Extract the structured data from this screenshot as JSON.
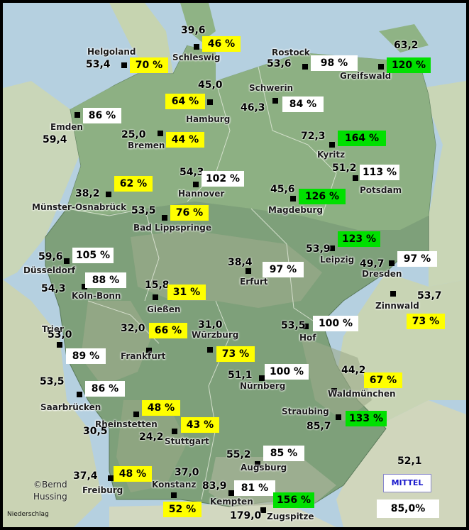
{
  "caption": "Niederschlag",
  "copyright": [
    "©Bernd",
    "Hussing"
  ],
  "average": {
    "legend": "MITTEL",
    "value": "52,1",
    "percent": "85,0%"
  },
  "colors": {
    "below": "#ffff00",
    "normal": "#ffffff",
    "above": "#00e000"
  },
  "stations": [
    {
      "id": "helgoland",
      "name": "Helgoland",
      "value": "53,4",
      "percent": "70 %",
      "level": "y"
    },
    {
      "id": "schleswig",
      "name": "Schleswig",
      "value": "39,6",
      "percent": "46 %",
      "level": "y"
    },
    {
      "id": "rostock",
      "name": "Rostock",
      "value": "53,6",
      "percent": "98 %",
      "level": "w"
    },
    {
      "id": "greifswald",
      "name": "Greifswald",
      "value": "63,2",
      "percent": "120 %",
      "level": "g"
    },
    {
      "id": "hamburg",
      "name": "Hamburg",
      "value": "45,0",
      "percent": "64 %",
      "level": "y"
    },
    {
      "id": "schwerin",
      "name": "Schwerin",
      "value": "46,3",
      "percent": "84 %",
      "level": "w"
    },
    {
      "id": "emden",
      "name": "Emden",
      "value": "59,4",
      "percent": "86 %",
      "level": "w"
    },
    {
      "id": "bremen",
      "name": "Bremen",
      "value": "25,0",
      "percent": "44 %",
      "level": "y"
    },
    {
      "id": "kyritz",
      "name": "Kyritz",
      "value": "72,3",
      "percent": "164 %",
      "level": "g"
    },
    {
      "id": "potsdam",
      "name": "Potsdam",
      "value": "51,2",
      "percent": "113 %",
      "level": "w"
    },
    {
      "id": "hannover",
      "name": "Hannover",
      "value": "54,3",
      "percent": "102 %",
      "level": "w"
    },
    {
      "id": "muenster",
      "name": "Münster-Osnabrück",
      "value": "38,2",
      "percent": "62 %",
      "level": "y"
    },
    {
      "id": "magdeburg",
      "name": "Magdeburg",
      "value": "45,6",
      "percent": "126 %",
      "level": "g"
    },
    {
      "id": "badlipp",
      "name": "Bad Lippspringe",
      "value": "53,5",
      "percent": "76 %",
      "level": "y"
    },
    {
      "id": "leipzig",
      "name": "Leipzig",
      "value": "53,9",
      "percent": "123 %",
      "level": "g"
    },
    {
      "id": "duesseldorf",
      "name": "Düsseldorf",
      "value": "59,6",
      "percent": "105 %",
      "level": "w"
    },
    {
      "id": "erfurt",
      "name": "Erfurt",
      "value": "38,4",
      "percent": "97 %",
      "level": "w"
    },
    {
      "id": "dresden",
      "name": "Dresden",
      "value": "49,7",
      "percent": "97 %",
      "level": "w"
    },
    {
      "id": "koeln",
      "name": "Köln-Bonn",
      "value": "54,3",
      "percent": "88 %",
      "level": "w"
    },
    {
      "id": "giessen",
      "name": "Gießen",
      "value": "15,8",
      "percent": "31 %",
      "level": "y"
    },
    {
      "id": "zinnwald",
      "name": "Zinnwald",
      "value": "53,7",
      "percent": "73 %",
      "level": "y"
    },
    {
      "id": "hof",
      "name": "Hof",
      "value": "53,5",
      "percent": "100 %",
      "level": "w"
    },
    {
      "id": "trier",
      "name": "Trier",
      "value": "53,0",
      "percent": "89 %",
      "level": "w"
    },
    {
      "id": "frankfurt",
      "name": "Frankfurt",
      "value": "32,0",
      "percent": "66 %",
      "level": "y"
    },
    {
      "id": "wuerzburg",
      "name": "Würzburg",
      "value": "31,0",
      "percent": "73 %",
      "level": "y"
    },
    {
      "id": "nuernberg",
      "name": "Nürnberg",
      "value": "51,1",
      "percent": "100 %",
      "level": "w"
    },
    {
      "id": "waldmuenchen",
      "name": "Waldmünchen",
      "value": "44,2",
      "percent": "67 %",
      "level": "y"
    },
    {
      "id": "saarbruecken",
      "name": "Saarbrücken",
      "value": "53,5",
      "percent": "86 %",
      "level": "w"
    },
    {
      "id": "rheinstetten",
      "name": "Rheinstetten",
      "value": "30,5",
      "percent": "48 %",
      "level": "y"
    },
    {
      "id": "stuttgart",
      "name": "Stuttgart",
      "value": "24,2",
      "percent": "43 %",
      "level": "y"
    },
    {
      "id": "straubing",
      "name": "Straubing",
      "value": "85,7",
      "percent": "133 %",
      "level": "g"
    },
    {
      "id": "augsburg",
      "name": "Augsburg",
      "value": "55,2",
      "percent": "85 %",
      "level": "w"
    },
    {
      "id": "freiburg",
      "name": "Freiburg",
      "value": "37,4",
      "percent": "48 %",
      "level": "y"
    },
    {
      "id": "konstanz",
      "name": "Konstanz",
      "value": "37,0",
      "percent": "52 %",
      "level": "y"
    },
    {
      "id": "kempten",
      "name": "Kempten",
      "value": "83,9",
      "percent": "81 %",
      "level": "w"
    },
    {
      "id": "zugspitze",
      "name": "Zugspitze",
      "value": "179,0",
      "percent": "156 %",
      "level": "g"
    }
  ]
}
